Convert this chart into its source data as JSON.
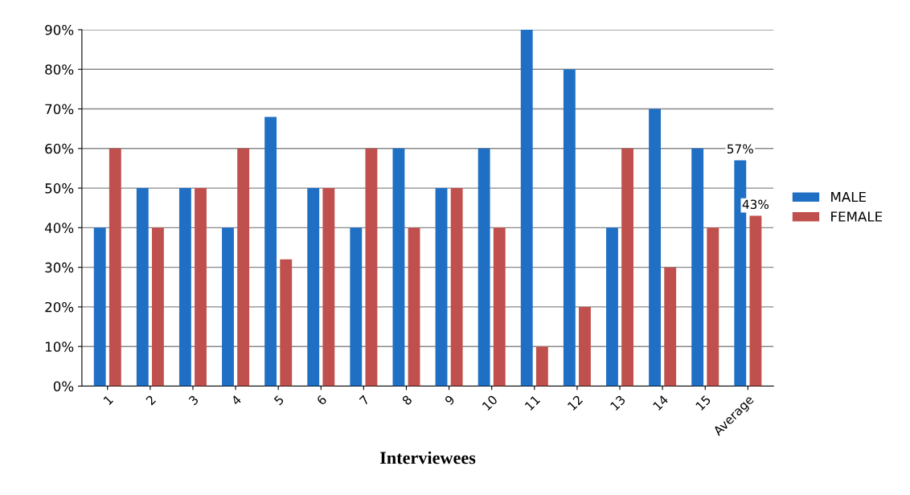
{
  "chart_data": {
    "type": "bar",
    "xlabel": "Interviewees",
    "categories": [
      "1",
      "2",
      "3",
      "4",
      "5",
      "6",
      "7",
      "8",
      "9",
      "10",
      "11",
      "12",
      "13",
      "14",
      "15",
      "Average"
    ],
    "series": [
      {
        "name": "MALE",
        "color": "#1f6fc5",
        "values": [
          40,
          50,
          50,
          40,
          68,
          50,
          40,
          60,
          50,
          60,
          90,
          80,
          40,
          70,
          60,
          57
        ],
        "value_labels": [
          null,
          null,
          null,
          null,
          null,
          null,
          null,
          null,
          null,
          null,
          null,
          null,
          null,
          null,
          null,
          "57%"
        ]
      },
      {
        "name": "FEMALE",
        "color": "#c0504d",
        "values": [
          60,
          40,
          50,
          60,
          32,
          50,
          60,
          40,
          50,
          40,
          10,
          20,
          60,
          30,
          40,
          43
        ],
        "value_labels": [
          null,
          null,
          null,
          null,
          null,
          null,
          null,
          null,
          null,
          null,
          null,
          null,
          null,
          null,
          null,
          "43%"
        ]
      }
    ],
    "ylim": [
      0,
      90
    ],
    "yticks": [
      {
        "value": 0,
        "label": "0%"
      },
      {
        "value": 10,
        "label": "10%"
      },
      {
        "value": 20,
        "label": "20%"
      },
      {
        "value": 30,
        "label": "30%"
      },
      {
        "value": 40,
        "label": "40%"
      },
      {
        "value": 50,
        "label": "50%"
      },
      {
        "value": 60,
        "label": "60%"
      },
      {
        "value": 70,
        "label": "70%"
      },
      {
        "value": 80,
        "label": "80%"
      },
      {
        "value": 90,
        "label": "90%"
      }
    ],
    "grid": "y",
    "legend": "right"
  }
}
